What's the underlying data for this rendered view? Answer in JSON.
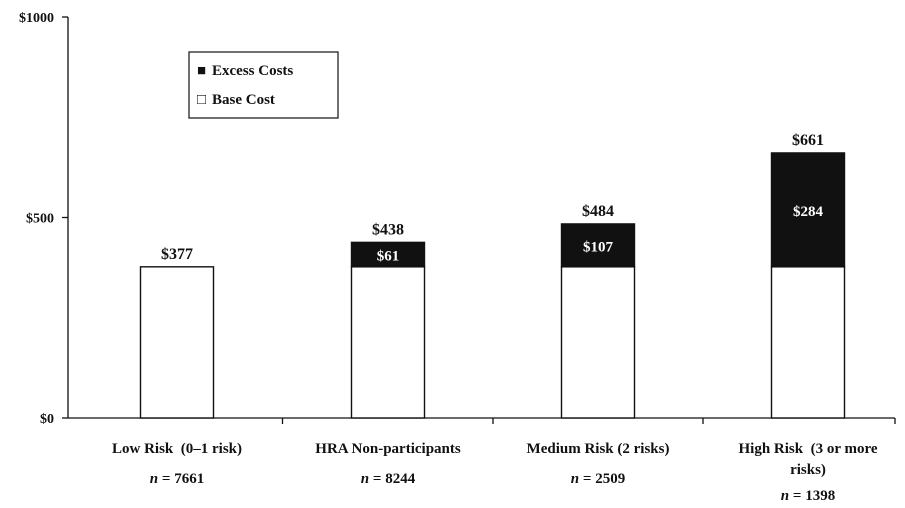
{
  "chart_data": {
    "type": "bar",
    "stacked": true,
    "title": "",
    "xlabel": "",
    "ylabel": "",
    "ylim": [
      0,
      1000
    ],
    "y_ticks": [
      "$0",
      "$500",
      "$1000"
    ],
    "y_tick_values": [
      0,
      500,
      1000
    ],
    "categories": [
      {
        "label": "Low Risk  (0–1 risk)",
        "n_prefix": "n",
        "n_value": "= 7661"
      },
      {
        "label": "HRA Non-participants",
        "n_prefix": "n",
        "n_value": "= 8244"
      },
      {
        "label": "Medium Risk (2 risks)",
        "n_prefix": "n",
        "n_value": "= 2509"
      },
      {
        "label": "High Risk  (3 or more risks)",
        "label_lines": [
          "High Risk  (3 or more",
          "risks)"
        ],
        "n_prefix": "n",
        "n_value": "= 1398"
      }
    ],
    "series": [
      {
        "name": "Base Cost",
        "color": "#ffffff",
        "values": [
          377,
          377,
          377,
          377
        ]
      },
      {
        "name": "Excess Costs",
        "color": "#111111",
        "values": [
          0,
          61,
          107,
          284
        ]
      }
    ],
    "excess_labels": [
      "",
      "$61",
      "$107",
      "$284"
    ],
    "total_labels": [
      "$377",
      "$438",
      "$484",
      "$661"
    ],
    "legend": {
      "placement": "top-left",
      "entries": [
        {
          "symbol": "■",
          "text": "Excess Costs"
        },
        {
          "symbol": "□",
          "text": "Base Cost"
        }
      ]
    },
    "grid": false
  }
}
